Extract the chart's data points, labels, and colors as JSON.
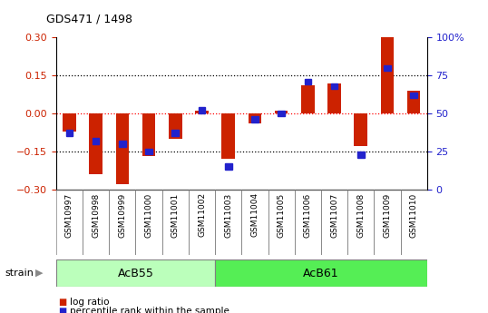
{
  "title": "GDS471 / 1498",
  "samples": [
    "GSM10997",
    "GSM10998",
    "GSM10999",
    "GSM11000",
    "GSM11001",
    "GSM11002",
    "GSM11003",
    "GSM11004",
    "GSM11005",
    "GSM11006",
    "GSM11007",
    "GSM11008",
    "GSM11009",
    "GSM11010"
  ],
  "log_ratio": [
    -0.07,
    -0.24,
    -0.28,
    -0.17,
    -0.1,
    0.01,
    -0.18,
    -0.04,
    0.01,
    0.11,
    0.12,
    -0.13,
    0.3,
    0.09
  ],
  "percentile": [
    37,
    32,
    30,
    25,
    37,
    52,
    15,
    46,
    50,
    71,
    68,
    23,
    80,
    62
  ],
  "groups": [
    {
      "label": "AcB55",
      "start": 0,
      "end": 5,
      "color": "#bbffbb"
    },
    {
      "label": "AcB61",
      "start": 6,
      "end": 13,
      "color": "#55ee55"
    }
  ],
  "ylim_left": [
    -0.3,
    0.3
  ],
  "ylim_right": [
    0,
    100
  ],
  "yticks_left": [
    -0.3,
    -0.15,
    0.0,
    0.15,
    0.3
  ],
  "yticks_right": [
    0,
    25,
    50,
    75,
    100
  ],
  "hlines_dotted": [
    -0.15,
    0.15
  ],
  "hline_red": 0.0,
  "bar_color_red": "#cc2200",
  "bar_color_blue": "#2222cc",
  "plot_bg": "#ffffff",
  "label_bg": "#cccccc",
  "strain_label": "strain",
  "legend_log_ratio": "log ratio",
  "legend_percentile": "percentile rank within the sample"
}
